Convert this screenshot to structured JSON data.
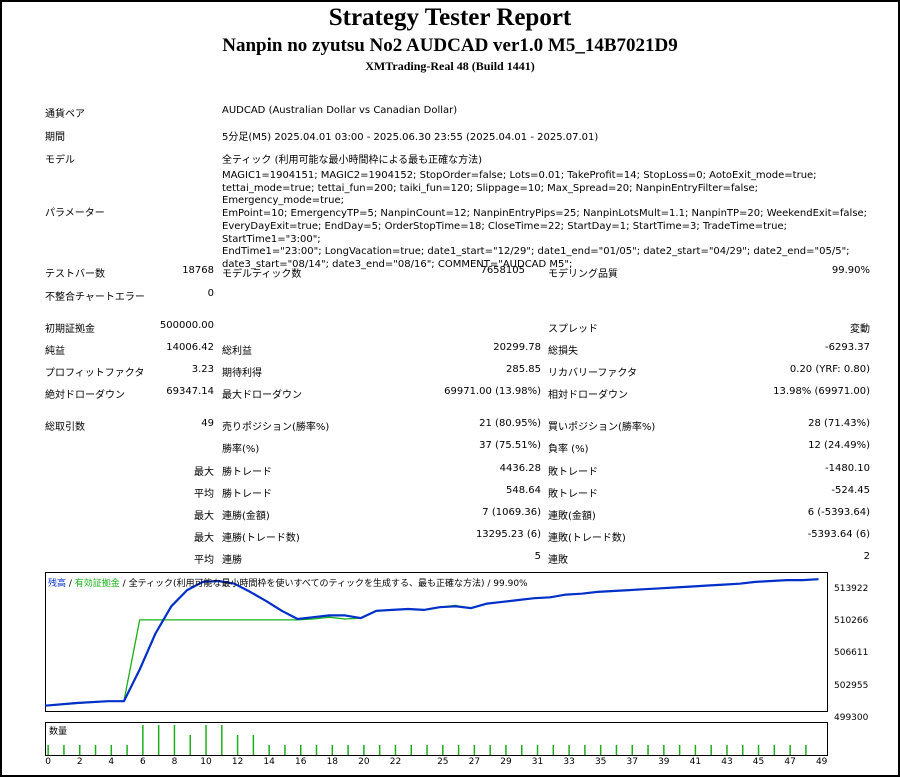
{
  "header": {
    "title": "Strategy Tester Report",
    "subtitle": "Nanpin no zyutsu No2 AUDCAD ver1.0 M5_14B7021D9",
    "server": "XMTrading-Real 48 (Build 1441)"
  },
  "info": {
    "pair_label": "通貨ペア",
    "pair_value": "AUDCAD (Australian Dollar vs Canadian Dollar)",
    "period_label": "期間",
    "period_value": "5分足(M5) 2025.04.01 03:00 - 2025.06.30 23:55 (2025.04.01 - 2025.07.01)",
    "model_label": "モデル",
    "model_value": "全ティック (利用可能な最小時間枠による最も正確な方法)",
    "params_label": "パラメーター",
    "params_lines": [
      "MAGIC1=1904151; MAGIC2=1904152; StopOrder=false; Lots=0.01; TakeProfit=14; StopLoss=0; AotoExit_mode=true;",
      "tettai_mode=true; tettai_fun=200; taiki_fun=120; Slippage=10; Max_Spread=20; NanpinEntryFilter=false; Emergency_mode=true;",
      "EmPoint=10; EmergencyTP=5; NanpinCount=12; NanpinEntryPips=25; NanpinLotsMult=1.1; NanpinTP=20; WeekendExit=false;",
      "EveryDayExit=true; EndDay=5; OrderStopTime=18; CloseTime=22; StartDay=1; StartTime=3; TradeTime=true; StartTime1=\"3:00\";",
      "EndTime1=\"23:00\"; LongVacation=true; date1_start=\"12/29\"; date1_end=\"01/05\"; date2_start=\"04/29\"; date2_end=\"05/5\";",
      "date3_start=\"08/14\"; date3_end=\"08/16\"; COMMENT=\"AUDCAD M5\";"
    ]
  },
  "stats": {
    "bars_label": "テストバー数",
    "bars_value": "18768",
    "ticks_label": "モデルティック数",
    "ticks_value": "7658105",
    "quality_label": "モデリング品質",
    "quality_value": "99.90%",
    "mismatch_label": "不整合チャートエラー",
    "mismatch_value": "0",
    "deposit_label": "初期証拠金",
    "deposit_value": "500000.00",
    "spread_label": "スプレッド",
    "spread_value": "変動",
    "net_label": "純益",
    "net_value": "14006.42",
    "gross_profit_label": "総利益",
    "gross_profit_value": "20299.78",
    "gross_loss_label": "総損失",
    "gross_loss_value": "-6293.37",
    "pf_label": "プロフィットファクタ",
    "pf_value": "3.23",
    "expected_label": "期待利得",
    "expected_value": "285.85",
    "recovery_label": "リカバリーファクタ",
    "recovery_value": "0.20 (YRF: 0.80)",
    "abs_dd_label": "絶対ドローダウン",
    "abs_dd_value": "69347.14",
    "max_dd_label": "最大ドローダウン",
    "max_dd_value": "69971.00 (13.98%)",
    "rel_dd_label": "相対ドローダウン",
    "rel_dd_value": "13.98% (69971.00)"
  },
  "trades": {
    "total_label": "総取引数",
    "total_value": "49",
    "short_label": "売りポジション(勝率%)",
    "short_value": "21 (80.95%)",
    "long_label": "買いポジション(勝率%)",
    "long_value": "28 (71.43%)",
    "winrate_label": "勝率(%)",
    "winrate_value": "37 (75.51%)",
    "lossrate_label": "負率 (%)",
    "lossrate_value": "12 (24.49%)",
    "max_word": "最大",
    "avg_word": "平均",
    "max_win_label": "勝トレード",
    "max_win_value": "4436.28",
    "max_loss_label": "敗トレード",
    "max_loss_value": "-1480.10",
    "avg_win_label": "勝トレード",
    "avg_win_value": "548.64",
    "avg_loss_label": "敗トレード",
    "avg_loss_value": "-524.45",
    "cons_win_amt_label": "連勝(金額)",
    "cons_win_amt_value": "7 (1069.36)",
    "cons_loss_amt_label": "連敗(金額)",
    "cons_loss_amt_value": "6 (-5393.64)",
    "cons_win_cnt_label": "連勝(トレード数)",
    "cons_win_cnt_value": "13295.23 (6)",
    "cons_loss_cnt_label": "連敗(トレード数)",
    "cons_loss_cnt_value": "-5393.64 (6)",
    "avg_cons_win_label": "連勝",
    "avg_cons_win_value": "5",
    "avg_cons_loss_label": "連敗",
    "avg_cons_loss_value": "2"
  },
  "chart_data": {
    "type": "line",
    "legend": {
      "balance": "残高",
      "sep1": " / ",
      "equity": "有効証拠金",
      "sep2": " / ",
      "model": "全ティック(利用可能な最小時間枠を使いすべてのティックを生成する、最も正確な方法)",
      "sep3": " / ",
      "quality": "99.90%"
    },
    "colors": {
      "balance": "#0030c8",
      "equity": "#18b018",
      "volume": "#18b018"
    },
    "ylim": [
      499300,
      514800
    ],
    "y_ticks": [
      "513922",
      "510266",
      "506611",
      "502955",
      "499300"
    ],
    "x_ticks": [
      "0",
      "2",
      "4",
      "6",
      "8",
      "10",
      "12",
      "14",
      "16",
      "18",
      "20",
      "22",
      "25",
      "27",
      "29",
      "31",
      "33",
      "35",
      "37",
      "39",
      "41",
      "43",
      "45",
      "47",
      "49"
    ],
    "x_range": [
      0,
      49.6
    ],
    "balance": [
      [
        0,
        500000
      ],
      [
        2,
        500300
      ],
      [
        4,
        500500
      ],
      [
        5,
        500500
      ],
      [
        6,
        504000
      ],
      [
        7,
        508000
      ],
      [
        8,
        511000
      ],
      [
        9,
        512800
      ],
      [
        10,
        513700
      ],
      [
        11,
        513800
      ],
      [
        12,
        513500
      ],
      [
        13,
        512600
      ],
      [
        14,
        511600
      ],
      [
        15,
        510500
      ],
      [
        16,
        509600
      ],
      [
        17,
        509800
      ],
      [
        18,
        510000
      ],
      [
        19,
        510000
      ],
      [
        20,
        509700
      ],
      [
        21,
        510500
      ],
      [
        22,
        510600
      ],
      [
        23,
        510700
      ],
      [
        24,
        510600
      ],
      [
        25,
        510900
      ],
      [
        26,
        511000
      ],
      [
        27,
        510800
      ],
      [
        28,
        511300
      ],
      [
        29,
        511500
      ],
      [
        30,
        511700
      ],
      [
        31,
        511900
      ],
      [
        32,
        512000
      ],
      [
        33,
        512300
      ],
      [
        34,
        512400
      ],
      [
        35,
        512600
      ],
      [
        36,
        512700
      ],
      [
        37,
        512800
      ],
      [
        38,
        512900
      ],
      [
        39,
        513000
      ],
      [
        40,
        513100
      ],
      [
        41,
        513200
      ],
      [
        42,
        513300
      ],
      [
        43,
        513400
      ],
      [
        44,
        513500
      ],
      [
        45,
        513700
      ],
      [
        46,
        513800
      ],
      [
        47,
        513900
      ],
      [
        48,
        513900
      ],
      [
        49,
        514000
      ]
    ],
    "equity": [
      [
        0,
        500000
      ],
      [
        4,
        500500
      ],
      [
        5,
        500500
      ],
      [
        6,
        509500
      ],
      [
        16,
        509500
      ],
      [
        17,
        509600
      ],
      [
        18,
        509800
      ],
      [
        19,
        509600
      ],
      [
        20,
        509700
      ],
      [
        21,
        510500
      ],
      [
        22,
        510600
      ],
      [
        23,
        510700
      ],
      [
        24,
        510600
      ],
      [
        25,
        510900
      ],
      [
        26,
        511100
      ],
      [
        27,
        510800
      ],
      [
        28,
        511300
      ],
      [
        29,
        511500
      ],
      [
        30,
        511700
      ],
      [
        31,
        511900
      ],
      [
        32,
        512000
      ],
      [
        33,
        512300
      ],
      [
        34,
        512400
      ],
      [
        35,
        512600
      ],
      [
        36,
        512700
      ],
      [
        37,
        512800
      ],
      [
        38,
        512900
      ],
      [
        39,
        513000
      ],
      [
        40,
        513100
      ],
      [
        41,
        513200
      ],
      [
        42,
        513300
      ],
      [
        43,
        513400
      ],
      [
        44,
        513500
      ],
      [
        45,
        513700
      ],
      [
        46,
        513800
      ],
      [
        47,
        513900
      ],
      [
        48,
        513900
      ],
      [
        49,
        514000
      ]
    ],
    "volume_label": "数量",
    "volume": [
      1,
      1,
      1,
      1,
      1,
      1,
      3,
      3,
      3,
      2,
      3,
      3,
      2,
      2,
      1,
      1,
      1,
      1,
      1,
      1,
      1,
      1,
      1,
      1,
      1,
      1,
      1,
      1,
      1,
      1,
      1,
      1,
      1,
      1,
      1,
      1,
      1,
      1,
      1,
      1,
      1,
      1,
      1,
      1,
      1,
      1,
      1,
      1,
      1
    ]
  }
}
